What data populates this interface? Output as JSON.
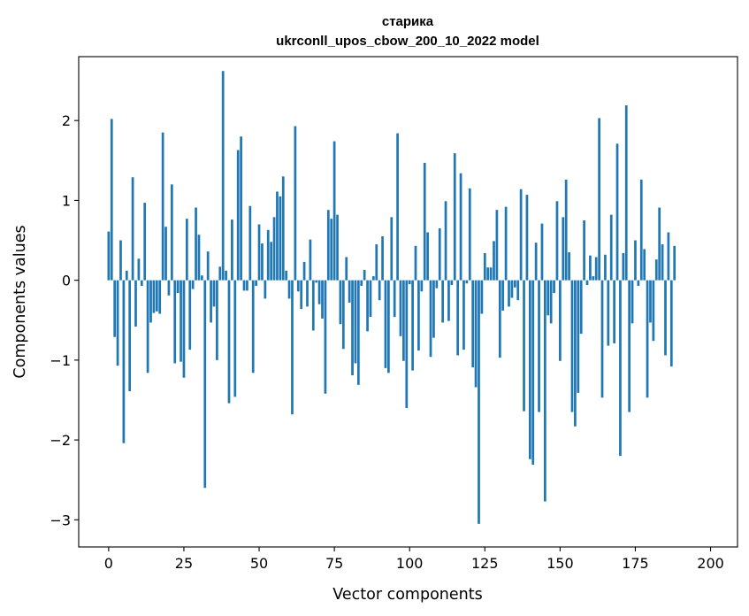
{
  "chart_data": {
    "type": "bar",
    "title": "старика",
    "subtitle": "ukrconll_upos_cbow_200_10_2022 model",
    "xlabel": "Vector components",
    "ylabel": "Components values",
    "xlim": [
      -9.95,
      208.95
    ],
    "ylim": [
      -3.34,
      2.8
    ],
    "xticks": [
      0,
      25,
      50,
      75,
      100,
      125,
      150,
      175,
      200
    ],
    "yticks": [
      -3,
      -2,
      -1,
      0,
      1,
      2
    ],
    "ytick_labels": [
      "−3",
      "−2",
      "−1",
      "0",
      "1",
      "2"
    ],
    "grid": false,
    "bar_color": "#1f77b4",
    "values": [
      0.61,
      2.02,
      -0.71,
      -1.07,
      0.5,
      -2.04,
      0.12,
      -1.39,
      1.29,
      -0.58,
      0.27,
      -0.07,
      0.97,
      -1.16,
      -0.53,
      -0.41,
      -0.39,
      -0.42,
      1.85,
      0.67,
      -0.19,
      1.2,
      -1.04,
      -0.16,
      -1.02,
      -1.22,
      0.77,
      -0.87,
      -0.11,
      0.91,
      0.57,
      0.06,
      -2.6,
      0.36,
      -0.53,
      -0.33,
      -1.0,
      0.17,
      2.62,
      0.12,
      -1.54,
      0.76,
      -1.46,
      1.63,
      1.8,
      -0.13,
      -0.13,
      0.93,
      -1.16,
      -0.07,
      0.7,
      0.46,
      -0.23,
      0.63,
      0.48,
      0.79,
      1.11,
      1.05,
      1.3,
      0.12,
      -0.23,
      -1.68,
      1.93,
      -0.14,
      -0.36,
      0.23,
      -0.33,
      0.51,
      -0.63,
      -0.03,
      -0.3,
      -0.48,
      -1.42,
      0.88,
      0.77,
      1.74,
      0.82,
      -0.55,
      -0.86,
      0.29,
      -0.28,
      -1.19,
      -1.04,
      -1.31,
      -0.07,
      0.13,
      -0.64,
      -0.46,
      0.05,
      0.45,
      -0.25,
      0.55,
      -1.1,
      -1.16,
      0.79,
      -0.46,
      1.84,
      -0.7,
      -1.01,
      -1.6,
      -0.05,
      -1.13,
      0.43,
      -0.88,
      -0.14,
      1.47,
      0.6,
      -0.96,
      -0.72,
      -0.1,
      0.65,
      -0.53,
      0.99,
      -0.51,
      -0.06,
      1.59,
      -0.94,
      1.34,
      -0.87,
      -0.04,
      1.15,
      -1.09,
      -1.34,
      -3.05,
      -0.42,
      0.34,
      0.16,
      0.16,
      0.49,
      0.88,
      -0.97,
      -0.38,
      0.92,
      -0.33,
      -0.22,
      -0.09,
      -0.25,
      1.14,
      -1.64,
      1.07,
      -2.24,
      -2.31,
      0.47,
      -1.65,
      0.71,
      -2.77,
      -0.44,
      -0.54,
      -0.16,
      0.99,
      -1.01,
      0.79,
      1.26,
      0.35,
      -1.65,
      -1.83,
      -1.41,
      -0.67,
      0.75,
      -0.06,
      0.31,
      0.05,
      0.29,
      2.03,
      -1.47,
      0.32,
      -0.82,
      0.82,
      -0.79,
      1.71,
      -2.2,
      0.34,
      2.19,
      -1.65,
      -0.54,
      0.5,
      -0.07,
      1.26,
      0.39,
      -1.47,
      -0.53,
      -0.76,
      0.26,
      0.91,
      0.45,
      -0.94,
      0.6,
      -1.08,
      0.43,
      0.0,
      0.0,
      0.0,
      0.0,
      0.0,
      0.0,
      0.0,
      0.0
    ]
  }
}
